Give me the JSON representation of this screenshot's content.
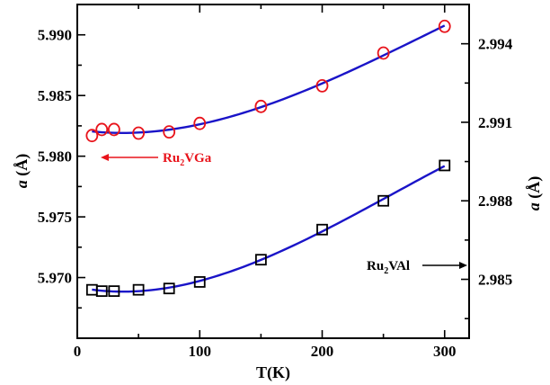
{
  "chart_data": {
    "type": "scatter",
    "xlabel": "T(K)",
    "ylabel_left": {
      "italic": "a",
      "rest": " (Å)"
    },
    "ylabel_right": {
      "italic": "a",
      "rest": " (Å)"
    },
    "xlim": [
      0,
      320
    ],
    "ylim_left": [
      5.965,
      5.9925
    ],
    "ylim_right": [
      2.98275,
      2.9955
    ],
    "x_ticks": [
      {
        "value": 0,
        "label": "0"
      },
      {
        "value": 100,
        "label": "100"
      },
      {
        "value": 200,
        "label": "200"
      },
      {
        "value": 300,
        "label": "300"
      }
    ],
    "y_ticks_left": [
      {
        "value": 5.97,
        "label": "5.970"
      },
      {
        "value": 5.975,
        "label": "5.975"
      },
      {
        "value": 5.98,
        "label": "5.980"
      },
      {
        "value": 5.985,
        "label": "5.985"
      },
      {
        "value": 5.99,
        "label": "5.990"
      }
    ],
    "y_ticks_right": [
      {
        "value": 2.985,
        "label": "2.985"
      },
      {
        "value": 2.988,
        "label": "2.988"
      },
      {
        "value": 2.991,
        "label": "2.991"
      },
      {
        "value": 2.994,
        "label": "2.994"
      }
    ],
    "series": [
      {
        "marker": "circle",
        "axis": "left",
        "color": "#e8131b",
        "x": [
          12,
          20,
          30,
          50,
          75,
          100,
          150,
          200,
          250,
          300
        ],
        "y": [
          5.9817,
          5.9822,
          5.9822,
          5.9819,
          5.982,
          5.9827,
          5.9841,
          5.9858,
          5.9885,
          5.9907
        ],
        "fit_color": "#1a14c8"
      },
      {
        "marker": "square",
        "axis": "right",
        "color": "#000000",
        "x": [
          12,
          20,
          30,
          50,
          75,
          100,
          150,
          200,
          250,
          300
        ],
        "y": [
          2.9846,
          2.98455,
          2.98455,
          2.9846,
          2.98465,
          2.9849,
          2.98575,
          2.9869,
          2.988,
          2.98935
        ],
        "fit_color": "#1a14c8"
      }
    ],
    "annotations": [
      {
        "text_main": "Ru",
        "text_sub": "2",
        "text_rest": "VGa",
        "color": "#e8131b",
        "arrow": "left"
      },
      {
        "text_main": "Ru",
        "text_sub": "2",
        "text_rest": "VAl",
        "color": "#000000",
        "arrow": "right"
      }
    ]
  }
}
